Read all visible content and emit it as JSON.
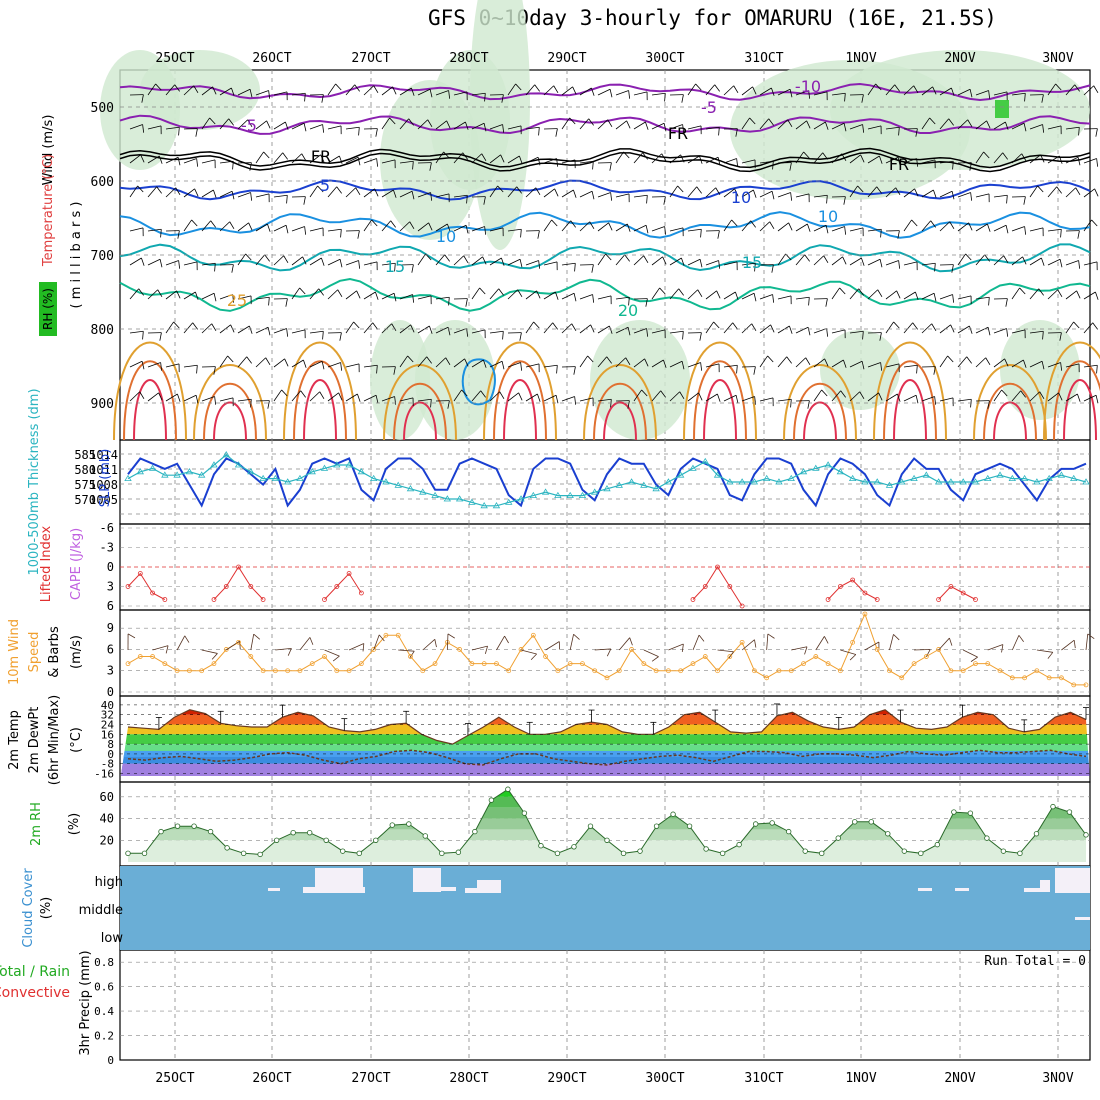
{
  "title": "GFS 0~10day 3-hourly for OMARURU (16E, 21.5S)",
  "dates": [
    "25OCT",
    "26OCT",
    "27OCT",
    "28OCT",
    "29OCT",
    "30OCT",
    "31OCT",
    "1NOV",
    "2NOV",
    "3NOV"
  ],
  "colors": {
    "frame": "#000000",
    "grid": "#888888",
    "rh_fill": "#cfe8cf",
    "slp_line": "#1a3fd0",
    "thickness_line": "#2ab4c0",
    "lifted_index": "#e03030",
    "wind_speed": "#f0a030",
    "cloud_fill": "#6aaed6",
    "cloud_clear": "#f4f0f8",
    "rh2m": "#22aa22",
    "temp_warm": "#e05020",
    "temp_band_green": "#44cc44",
    "temp_band_blue": "#3a8de0",
    "temp_band_purple": "#9060d0"
  },
  "panels": {
    "upper": {
      "label_wind": "Wind (m/s)",
      "label_temp": "Temperature (°C)",
      "label_rh": "RH (%)",
      "label_mb": "( m i l l i b a r s )",
      "y_ticks": [
        "500",
        "600",
        "700",
        "800",
        "900"
      ],
      "contour_labels": [
        "-10",
        "-5",
        "-5",
        "FR",
        "FR",
        "FR",
        "-5",
        "5",
        "10",
        "10",
        "10",
        "15",
        "15",
        "20",
        "25",
        "5",
        "10",
        "10"
      ]
    },
    "pressure": {
      "label_thick": "1000-500mb Thickness (dm)",
      "label_slp": "SLP (mb)",
      "left_ticks": [
        "585",
        "580",
        "575",
        "570"
      ],
      "right_ticks": [
        "1014",
        "1011",
        "1008",
        "1005"
      ]
    },
    "stability": {
      "label_li": "Lifted Index",
      "label_cape": "CAPE (J/kg)",
      "ticks": [
        "-6",
        "-3",
        "0",
        "3",
        "6"
      ]
    },
    "wind10m": {
      "label_a": "10m Wind",
      "label_b": "Speed",
      "label_c": "& Barbs",
      "label_units": "(m/s)",
      "ticks": [
        "9",
        "6",
        "3",
        "0"
      ]
    },
    "temp2m": {
      "label_a": "2m Temp",
      "label_b": "2m DewPt",
      "label_c": "(6hr Min/Max)",
      "label_units": "(°C)",
      "ticks": [
        "40",
        "32",
        "24",
        "16",
        "8",
        "0",
        "-8",
        "-16"
      ]
    },
    "rh2m": {
      "label": "2m RH",
      "label_units": "(%)",
      "ticks": [
        "60",
        "40",
        "20"
      ]
    },
    "cloud": {
      "label": "Cloud Cover",
      "label_units": "(%)",
      "levels": [
        "high",
        "middle",
        "low"
      ]
    },
    "precip": {
      "label_a": "Total / Rain",
      "label_b": "Convective",
      "label_c": "3hr Precip (mm)",
      "ticks": [
        "0.8",
        "0.6",
        "0.4",
        "0.2",
        "0"
      ],
      "run_total": "Run Total = 0"
    }
  },
  "chart_data": [
    {
      "type": "line",
      "name": "upper-air cross section",
      "y_axis": "pressure (mb)",
      "ylim": [
        950,
        450
      ],
      "contour_labels_c": [
        -10,
        -5,
        0,
        5,
        10,
        15,
        20,
        25
      ]
    },
    {
      "type": "line",
      "series": [
        {
          "name": "SLP",
          "values": [
            1011,
            1014,
            1013,
            1012,
            1013,
            1009,
            1005,
            1011,
            1014,
            1013,
            1011,
            1009,
            1012,
            1005,
            1008,
            1013,
            1014,
            1013,
            1014,
            1008,
            1006,
            1012,
            1014,
            1014,
            1012,
            1008,
            1008,
            1013,
            1014,
            1013,
            1012,
            1007,
            1005,
            1012,
            1014,
            1014,
            1013,
            1008,
            1006,
            1011,
            1014,
            1013,
            1013,
            1009,
            1007,
            1012,
            1014,
            1013,
            1012,
            1007,
            1006,
            1011,
            1014,
            1014,
            1013,
            1008,
            1005,
            1011,
            1014,
            1013,
            1011,
            1007,
            1005,
            1011,
            1014,
            1012,
            1012,
            1008,
            1006,
            1011,
            1012,
            1013,
            1012,
            1009,
            1006,
            1010,
            1012,
            1012,
            1013
          ]
        },
        {
          "name": "Thickness",
          "values": [
            579,
            581,
            582,
            580,
            580,
            581,
            580,
            583,
            586,
            583,
            581,
            579,
            579,
            578,
            579,
            581,
            582,
            583,
            583,
            581,
            579,
            578,
            577,
            576,
            575,
            574,
            573,
            573,
            572,
            571,
            571,
            572,
            573,
            574,
            575,
            574,
            574,
            574,
            575,
            576,
            577,
            578,
            577,
            576,
            578,
            580,
            582,
            584,
            580,
            578,
            578,
            578,
            579,
            578,
            579,
            581,
            582,
            583,
            581,
            579,
            578,
            578,
            577,
            578,
            579,
            580,
            578,
            578,
            578,
            578,
            579,
            580,
            579,
            579,
            578,
            579,
            580,
            579,
            578
          ]
        }
      ]
    },
    {
      "type": "line",
      "series": [
        {
          "name": "Lifted Index",
          "values": [
            3,
            1,
            4,
            5,
            null,
            null,
            null,
            5,
            3,
            0,
            3,
            5,
            null,
            null,
            null,
            null,
            5,
            3,
            1,
            4,
            null,
            null,
            null,
            null,
            null,
            null,
            null,
            null,
            null,
            null,
            null,
            null,
            null,
            null,
            null,
            null,
            null,
            null,
            null,
            null,
            null,
            null,
            null,
            null,
            null,
            null,
            5,
            3,
            0,
            3,
            6,
            null,
            null,
            null,
            null,
            null,
            null,
            5,
            3,
            2,
            4,
            5,
            null,
            null,
            null,
            null,
            5,
            3,
            4,
            5,
            null,
            null,
            null,
            null,
            null,
            null,
            null,
            null,
            null
          ]
        }
      ]
    },
    {
      "type": "line",
      "series": [
        {
          "name": "10m Wind Speed",
          "values": [
            4,
            5,
            5,
            4,
            3,
            3,
            3,
            4,
            6,
            7,
            5,
            3,
            3,
            3,
            3,
            4,
            5,
            3,
            3,
            4,
            6,
            8,
            8,
            5,
            3,
            4,
            7,
            6,
            4,
            4,
            4,
            3,
            6,
            8,
            5,
            3,
            4,
            4,
            3,
            2,
            3,
            6,
            4,
            3,
            3,
            3,
            4,
            5,
            3,
            5,
            7,
            3,
            2,
            3,
            3,
            4,
            5,
            4,
            3,
            7,
            11,
            6,
            3,
            2,
            4,
            5,
            6,
            3,
            3,
            4,
            4,
            3,
            2,
            2,
            3,
            2,
            2,
            1,
            1
          ]
        }
      ]
    },
    {
      "type": "area",
      "series": [
        {
          "name": "2m Temp",
          "values": [
            22,
            21,
            20,
            30,
            36,
            33,
            25,
            23,
            22,
            22,
            30,
            34,
            31,
            22,
            19,
            18,
            20,
            24,
            25,
            16,
            11,
            8,
            15,
            22,
            30,
            22,
            16,
            16,
            18,
            24,
            26,
            24,
            18,
            16,
            16,
            22,
            32,
            34,
            26,
            18,
            17,
            18,
            31,
            34,
            27,
            22,
            20,
            22,
            32,
            36,
            26,
            21,
            20,
            22,
            30,
            34,
            32,
            21,
            18,
            20,
            30,
            34,
            28
          ]
        },
        {
          "name": "2m DewPt",
          "values": [
            -4,
            -5,
            -3,
            -2,
            -4,
            -6,
            -5,
            -3,
            0,
            1,
            -1,
            -5,
            -8,
            -4,
            -2,
            2,
            3,
            1,
            -3,
            -8,
            -9,
            -4,
            0,
            0,
            -4,
            -6,
            -8,
            -9,
            -6,
            -4,
            -2,
            -1,
            -3,
            -6,
            -2,
            2,
            2,
            1,
            -2,
            0,
            0,
            -1,
            -3,
            -1,
            2,
            0,
            -1,
            1,
            3,
            1,
            1,
            2,
            3,
            0,
            -2
          ]
        }
      ]
    },
    {
      "type": "area",
      "series": [
        {
          "name": "2m RH",
          "values": [
            8,
            8,
            28,
            33,
            33,
            28,
            13,
            8,
            7,
            20,
            27,
            27,
            20,
            10,
            8,
            20,
            34,
            35,
            24,
            8,
            9,
            28,
            57,
            67,
            45,
            15,
            8,
            14,
            33,
            20,
            8,
            10,
            33,
            44,
            33,
            12,
            8,
            16,
            35,
            36,
            28,
            10,
            8,
            22,
            37,
            37,
            26,
            10,
            8,
            16,
            46,
            45,
            22,
            10,
            8,
            26,
            51,
            46,
            25
          ]
        }
      ]
    },
    {
      "type": "area",
      "series": [
        {
          "name": "Cloud Cover high",
          "values": [
            0
          ]
        },
        {
          "name": "Cloud Cover middle",
          "values": [
            0
          ]
        },
        {
          "name": "Cloud Cover low",
          "values": [
            0
          ]
        }
      ]
    },
    {
      "type": "bar",
      "series": [
        {
          "name": "3hr Precip",
          "values": [
            0
          ]
        }
      ],
      "ylim": [
        0,
        0.9
      ]
    }
  ]
}
